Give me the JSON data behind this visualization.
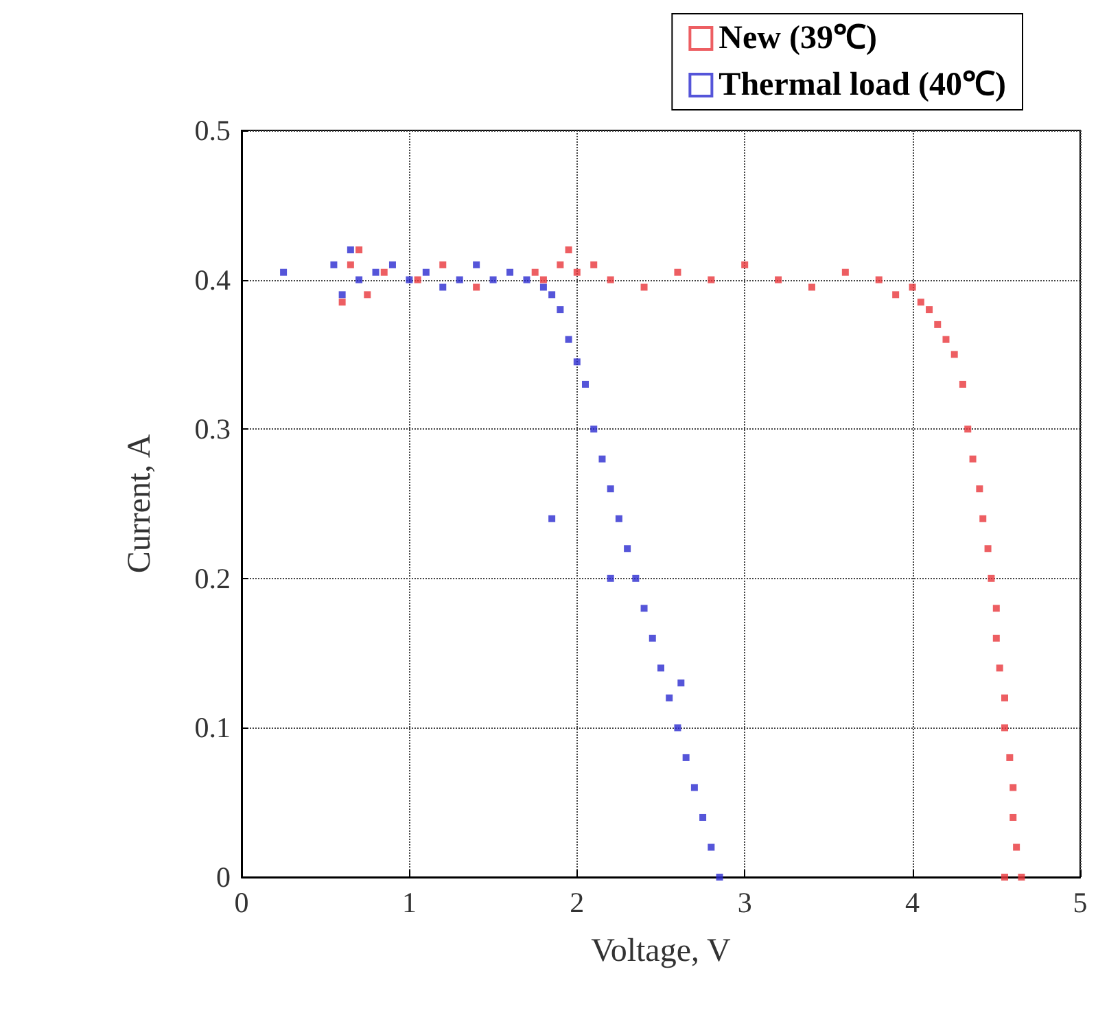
{
  "chart_data": {
    "type": "scatter",
    "xlabel": "Voltage, V",
    "ylabel": "Current, A",
    "xlim": [
      0,
      5
    ],
    "ylim": [
      0,
      0.5
    ],
    "xticks": [
      0,
      1,
      2,
      3,
      4,
      5
    ],
    "yticks": [
      0,
      0.1,
      0.2,
      0.3,
      0.4,
      0.5
    ],
    "grid": true,
    "legend": "top right",
    "marker": "square",
    "series": [
      {
        "name": "New (39℃)",
        "color": "#e8363b",
        "x": [
          0.6,
          0.65,
          0.7,
          0.75,
          0.85,
          1.05,
          1.2,
          1.4,
          1.75,
          1.8,
          1.9,
          1.95,
          2.0,
          2.1,
          2.2,
          2.4,
          2.6,
          2.8,
          3.0,
          3.2,
          3.4,
          3.6,
          3.8,
          3.9,
          4.0,
          4.05,
          4.1,
          4.15,
          4.2,
          4.25,
          4.3,
          4.33,
          4.36,
          4.4,
          4.42,
          4.45,
          4.47,
          4.5,
          4.5,
          4.52,
          4.55,
          4.55,
          4.58,
          4.6,
          4.6,
          4.62,
          4.65,
          4.55
        ],
        "values": [
          0.385,
          0.41,
          0.42,
          0.39,
          0.405,
          0.4,
          0.41,
          0.395,
          0.405,
          0.4,
          0.41,
          0.42,
          0.405,
          0.41,
          0.4,
          0.395,
          0.405,
          0.4,
          0.41,
          0.4,
          0.395,
          0.405,
          0.4,
          0.39,
          0.395,
          0.385,
          0.38,
          0.37,
          0.36,
          0.35,
          0.33,
          0.3,
          0.28,
          0.26,
          0.24,
          0.22,
          0.2,
          0.18,
          0.16,
          0.14,
          0.12,
          0.1,
          0.08,
          0.06,
          0.04,
          0.02,
          0.0,
          0.0
        ]
      },
      {
        "name": "Thermal load (40℃)",
        "color": "#2a2ad0",
        "x": [
          0.25,
          0.55,
          0.6,
          0.65,
          0.7,
          0.8,
          0.9,
          1.0,
          1.1,
          1.2,
          1.3,
          1.4,
          1.5,
          1.6,
          1.7,
          1.8,
          1.85,
          1.9,
          1.95,
          2.0,
          2.05,
          2.1,
          2.15,
          2.2,
          2.25,
          2.3,
          2.35,
          2.4,
          2.45,
          2.5,
          2.55,
          2.6,
          2.65,
          2.7,
          2.75,
          2.8,
          2.85,
          1.85,
          2.2,
          2.62
        ],
        "values": [
          0.405,
          0.41,
          0.39,
          0.42,
          0.4,
          0.405,
          0.41,
          0.4,
          0.405,
          0.395,
          0.4,
          0.41,
          0.4,
          0.405,
          0.4,
          0.395,
          0.39,
          0.38,
          0.36,
          0.345,
          0.33,
          0.3,
          0.28,
          0.26,
          0.24,
          0.22,
          0.2,
          0.18,
          0.16,
          0.14,
          0.12,
          0.1,
          0.08,
          0.06,
          0.04,
          0.02,
          0.0,
          0.24,
          0.2,
          0.13
        ]
      }
    ]
  }
}
